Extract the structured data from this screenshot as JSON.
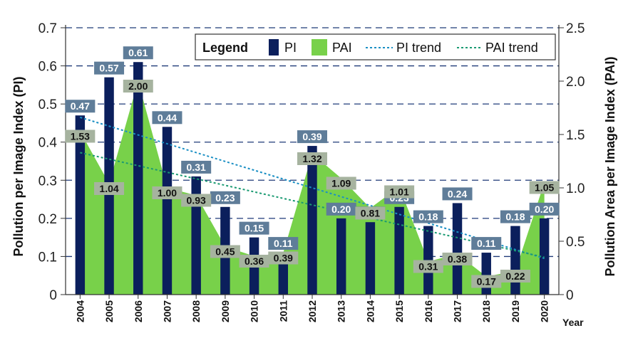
{
  "chart_data": {
    "type": "bar",
    "title": "",
    "categories": [
      "2004",
      "2005",
      "2006",
      "2007",
      "2008",
      "2009",
      "2010",
      "2011",
      "2012",
      "2013",
      "2014",
      "2015",
      "2016",
      "2017",
      "2018",
      "2019",
      "2020"
    ],
    "series": [
      {
        "name": "PI",
        "kind": "bar",
        "axis": "left",
        "color": "#0b1f5c",
        "values": [
          0.47,
          0.57,
          0.61,
          0.44,
          0.31,
          0.23,
          0.15,
          0.11,
          0.39,
          0.2,
          0.19,
          0.23,
          0.18,
          0.24,
          0.11,
          0.18,
          0.2
        ]
      },
      {
        "name": "PAI",
        "kind": "area",
        "axis": "right",
        "color": "#78d14a",
        "values": [
          1.53,
          1.04,
          2.0,
          1.0,
          0.93,
          0.45,
          0.36,
          0.39,
          1.32,
          1.09,
          0.81,
          1.01,
          0.31,
          0.38,
          0.17,
          0.22,
          1.05
        ]
      },
      {
        "name": "PI trend",
        "kind": "trend",
        "axis": "left",
        "color": "#1a8fc4",
        "start": 0.465,
        "end": 0.095
      },
      {
        "name": "PAI trend",
        "kind": "trend",
        "axis": "right",
        "color": "#1a9a72",
        "start": 1.33,
        "end": 0.35
      }
    ],
    "xlabel": "Year",
    "ylabel": "Pollution per Image Index (PI)",
    "y2label": "Pollution Area per Image Index  (PAI)",
    "ylim": [
      0,
      0.7
    ],
    "y2lim": [
      0,
      2.5
    ],
    "yticks": [
      "0",
      "0.1",
      "0.2",
      "0.3",
      "0.4",
      "0.5",
      "0.6",
      "0.7"
    ],
    "y2ticks": [
      "0",
      "0.5",
      "1.0",
      "1.5",
      "2.0",
      "2.5"
    ],
    "legend": {
      "title": "Legend",
      "placement": "top-right"
    },
    "grid": "horizontal dashed"
  }
}
